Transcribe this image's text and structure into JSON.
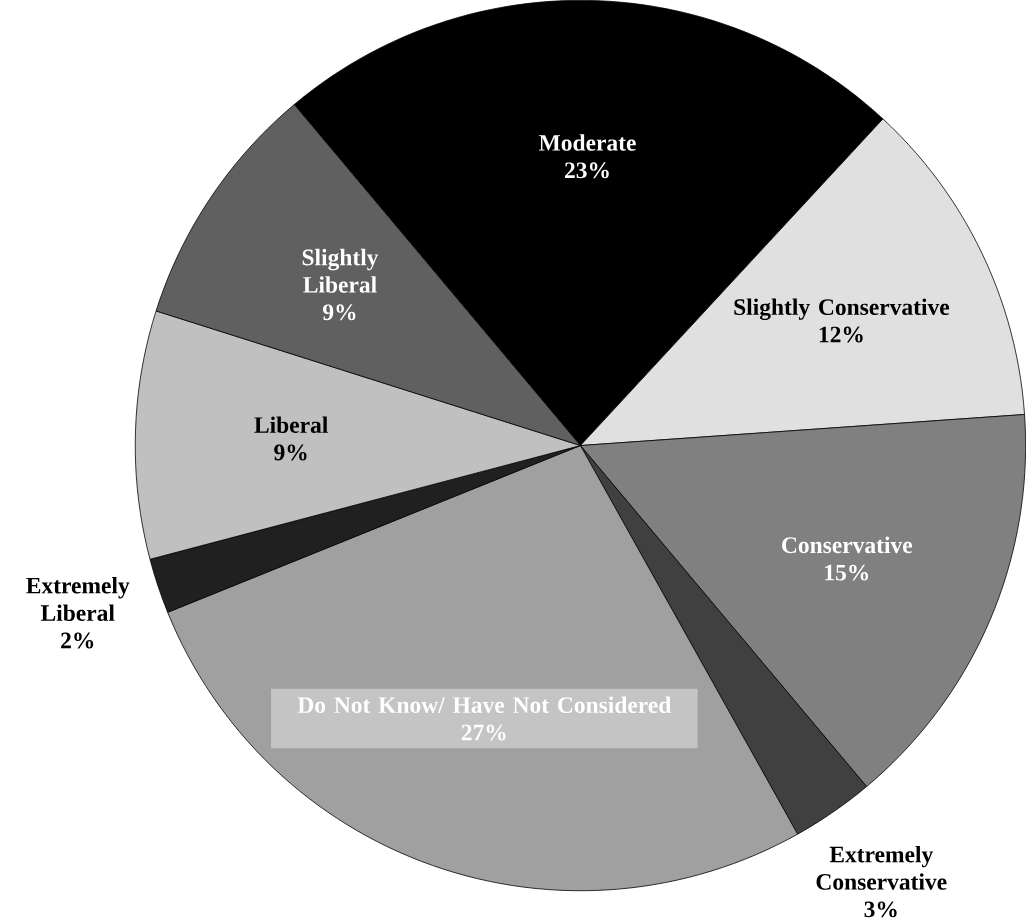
{
  "chart_data": {
    "type": "pie",
    "categories": [
      "Moderate",
      "Slightly Conservative",
      "Conservative",
      "Extremely Conservative",
      "Do Not Know/ Have Not Considered",
      "Extremely Liberal",
      "Liberal",
      "Slightly Liberal"
    ],
    "values": [
      23,
      12,
      15,
      3,
      27,
      2,
      9,
      9
    ],
    "value_labels": [
      "23%",
      "12%",
      "15%",
      "3%",
      "27%",
      "2%",
      "9%",
      "9%"
    ],
    "colors": [
      "#000000",
      "#e0e0e0",
      "#808080",
      "#404040",
      "#a0a0a0",
      "#202020",
      "#c0c0c0",
      "#606060"
    ]
  }
}
